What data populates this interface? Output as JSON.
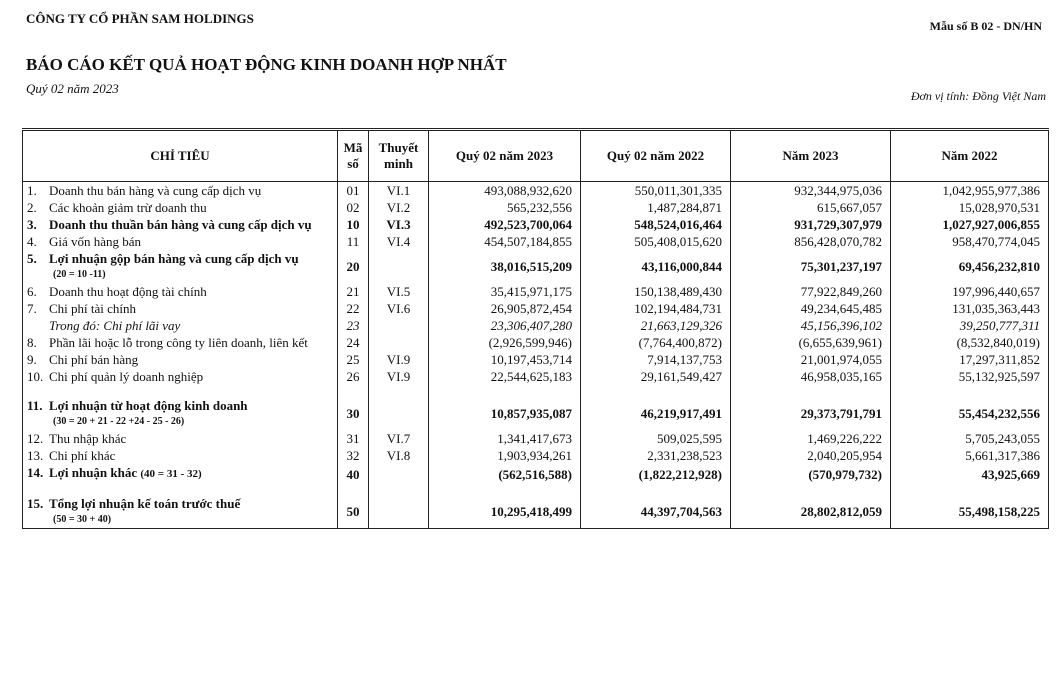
{
  "header": {
    "company": "CÔNG TY CỔ PHẦN SAM HOLDINGS",
    "form": "Mẫu số B 02 - DN/HN",
    "title": "BÁO CÁO KẾT QUẢ HOẠT ĐỘNG KINH DOANH HỢP NHẤT",
    "period": "Quý 02 năm 2023",
    "unit": "Đơn vị tính: Đồng Việt Nam"
  },
  "table": {
    "columns": [
      "CHỈ TIÊU",
      "Mã số",
      "Thuyết minh",
      "Quý 02 năm 2023",
      "Quý 02 năm 2022",
      "Năm 2023",
      "Năm 2022"
    ],
    "rows": [
      {
        "no": "1.",
        "label": "Doanh thu bán hàng và cung cấp dịch vụ",
        "code": "01",
        "note": "VI.1",
        "values": [
          "493,088,932,620",
          "550,011,301,335",
          "932,344,975,036",
          "1,042,955,977,386"
        ]
      },
      {
        "no": "2.",
        "label": "Các khoản giảm trừ doanh thu",
        "code": "02",
        "note": "VI.2",
        "values": [
          "565,232,556",
          "1,487,284,871",
          "615,667,057",
          "15,028,970,531"
        ]
      },
      {
        "no": "3.",
        "label": "Doanh thu thuần bán hàng và cung cấp dịch vụ",
        "code": "10",
        "note": "VI.3",
        "values": [
          "492,523,700,064",
          "548,524,016,464",
          "931,729,307,979",
          "1,027,927,006,855"
        ]
      },
      {
        "no": "4.",
        "label": "Giá vốn hàng bán",
        "code": "11",
        "note": "VI.4",
        "values": [
          "454,507,184,855",
          "505,408,015,620",
          "856,428,070,782",
          "958,470,774,045"
        ]
      },
      {
        "no": "5.",
        "label": "Lợi nhuận gộp bán hàng và cung cấp dịch vụ",
        "formula": "(20 = 10 -11)",
        "code": "20",
        "values": [
          "38,016,515,209",
          "43,116,000,844",
          "75,301,237,197",
          "69,456,232,810"
        ]
      },
      {
        "no": "6.",
        "label": "Doanh thu hoạt động tài chính",
        "code": "21",
        "note": "VI.5",
        "values": [
          "35,415,971,175",
          "150,138,489,430",
          "77,922,849,260",
          "197,996,440,657"
        ]
      },
      {
        "no": "7.",
        "label": "Chi phí tài chính",
        "code": "22",
        "note": "VI.6",
        "values": [
          "26,905,872,454",
          "102,194,484,731",
          "49,234,645,485",
          "131,035,363,443"
        ]
      },
      {
        "label": "Trong đó: Chi phí lãi vay",
        "code": "23",
        "values": [
          "23,306,407,280",
          "21,663,129,326",
          "45,156,396,102",
          "39,250,777,311"
        ]
      },
      {
        "no": "8.",
        "label": "Phần lãi hoặc lỗ trong công ty liên doanh, liên kết",
        "code": "24",
        "values": [
          "(2,926,599,946)",
          "(7,764,400,872)",
          "(6,655,639,961)",
          "(8,532,840,019)"
        ]
      },
      {
        "no": "9.",
        "label": "Chi phí bán hàng",
        "code": "25",
        "note": "VI.9",
        "values": [
          "10,197,453,714",
          "7,914,137,753",
          "21,001,974,055",
          "17,297,311,852"
        ]
      },
      {
        "no": "10.",
        "label": "Chi phí quản lý doanh nghiệp",
        "code": "26",
        "note": "VI.9",
        "values": [
          "22,544,625,183",
          "29,161,549,427",
          "46,958,035,165",
          "55,132,925,597"
        ]
      },
      {
        "no": "11.",
        "label": "Lợi nhuận từ hoạt động kinh doanh",
        "formula": "(30 = 20 + 21 - 22 +24 - 25 - 26)",
        "code": "30",
        "values": [
          "10,857,935,087",
          "46,219,917,491",
          "29,373,791,791",
          "55,454,232,556"
        ]
      },
      {
        "no": "12.",
        "label": "Thu nhập khác",
        "code": "31",
        "note": "VI.7",
        "values": [
          "1,341,417,673",
          "509,025,595",
          "1,469,226,222",
          "5,705,243,055"
        ]
      },
      {
        "no": "13.",
        "label": "Chi phí khác",
        "code": "32",
        "note": "VI.8",
        "values": [
          "1,903,934,261",
          "2,331,238,523",
          "2,040,205,954",
          "5,661,317,386"
        ]
      },
      {
        "no": "14.",
        "label": "Lợi nhuận khác",
        "formula": "(40 = 31 - 32)",
        "code": "40",
        "values": [
          "(562,516,588)",
          "(1,822,212,928)",
          "(570,979,732)",
          "43,925,669"
        ]
      },
      {
        "no": "15.",
        "label": "Tổng lợi nhuận kế toán trước thuế",
        "formula": "(50 = 30 + 40)",
        "code": "50",
        "values": [
          "10,295,418,499",
          "44,397,704,563",
          "28,802,812,059",
          "55,498,158,225"
        ]
      }
    ]
  }
}
